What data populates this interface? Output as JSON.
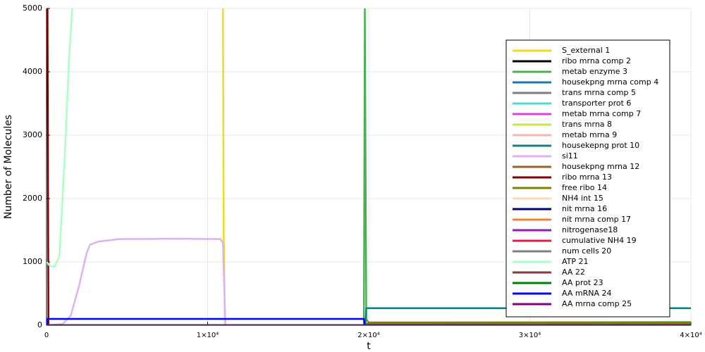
{
  "chart_data": {
    "type": "line",
    "xlabel": "t",
    "ylabel": "Number of Molecules",
    "xlim": [
      0,
      40000
    ],
    "ylim": [
      0,
      5000
    ],
    "xticks": [
      0,
      {
        "value": 10000,
        "label": "1×10⁴"
      },
      {
        "value": 20000,
        "label": "2×10⁴"
      },
      {
        "value": 30000,
        "label": "3×10⁴"
      },
      {
        "value": 40000,
        "label": "4×10⁴"
      }
    ],
    "yticks": [
      0,
      1000,
      2000,
      3000,
      4000,
      5000
    ],
    "grid": true,
    "legend": "top-right",
    "series": [
      {
        "name": "S_external 1",
        "color": "#f5d81f",
        "x": [
          10950,
          11000,
          11080,
          40000
        ],
        "values": [
          5000,
          1400,
          0,
          0
        ]
      },
      {
        "name": "ribo mrna comp 2",
        "color": "#000000",
        "x": [
          0,
          40000
        ],
        "values": [
          0,
          0
        ]
      },
      {
        "name": "metab enzyme 3",
        "color": "#4cb050",
        "x": [
          0,
          19700,
          19760,
          19850,
          20000,
          40000
        ],
        "values": [
          0,
          0,
          5000,
          100,
          40,
          50
        ]
      },
      {
        "name": "housekpng mrna comp 4",
        "color": "#1f78b4",
        "x": [
          0,
          40000
        ],
        "values": [
          0,
          0
        ]
      },
      {
        "name": "trans mrna comp 5",
        "color": "#808080",
        "x": [
          0,
          40000
        ],
        "values": [
          0,
          0
        ]
      },
      {
        "name": "transporter prot 6",
        "color": "#4dd9e0",
        "x": [
          0,
          40000
        ],
        "values": [
          0,
          0
        ]
      },
      {
        "name": "metab mrna comp 7",
        "color": "#e040e0",
        "x": [
          0,
          40000
        ],
        "values": [
          0,
          0
        ]
      },
      {
        "name": "trans mrna 8",
        "color": "#c6e84a",
        "x": [
          0,
          19800,
          20000,
          40000
        ],
        "values": [
          0,
          0,
          30,
          30
        ]
      },
      {
        "name": "metab mrna 9",
        "color": "#f4b6b6",
        "x": [
          0,
          40000
        ],
        "values": [
          0,
          0
        ]
      },
      {
        "name": "housekepng prot 10",
        "color": "#138080",
        "x": [
          0,
          19800,
          19850,
          40000
        ],
        "values": [
          0,
          0,
          270,
          270
        ]
      },
      {
        "name": "si11",
        "color": "#dcb3f0",
        "x": [
          0,
          1000,
          1500,
          2000,
          2500,
          2700,
          3200,
          4500,
          8000,
          10800,
          10950,
          11100,
          40000
        ],
        "values": [
          0,
          20,
          150,
          600,
          1150,
          1270,
          1320,
          1360,
          1365,
          1360,
          1300,
          0,
          0
        ]
      },
      {
        "name": "housekpng mrna 12",
        "color": "#9a6324",
        "x": [
          0,
          19800,
          20000,
          40000
        ],
        "values": [
          0,
          0,
          30,
          30
        ]
      },
      {
        "name": "ribo mrna 13",
        "color": "#800000",
        "x": [
          0,
          60,
          120,
          40000
        ],
        "values": [
          5000,
          5000,
          0,
          0
        ]
      },
      {
        "name": "free ribo 14",
        "color": "#808000",
        "x": [
          0,
          19800,
          20000,
          40000
        ],
        "values": [
          0,
          0,
          45,
          45
        ]
      },
      {
        "name": "NH4 int 15",
        "color": "#ffd8b1",
        "x": [
          0,
          40000
        ],
        "values": [
          0,
          0
        ]
      },
      {
        "name": "nit mrna 16",
        "color": "#000075",
        "x": [
          0,
          40000
        ],
        "values": [
          0,
          0
        ]
      },
      {
        "name": "nit mrna comp 17",
        "color": "#f58231",
        "x": [
          0,
          40000
        ],
        "values": [
          0,
          0
        ]
      },
      {
        "name": "nitrogenase18",
        "color": "#911eb4",
        "x": [
          0,
          40000
        ],
        "values": [
          0,
          0
        ]
      },
      {
        "name": "cumulative NH4 19",
        "color": "#e6194b",
        "x": [
          0,
          40000
        ],
        "values": [
          0,
          0
        ]
      },
      {
        "name": "num cells 20",
        "color": "#808080",
        "x": [
          0,
          40000
        ],
        "values": [
          0,
          0
        ]
      },
      {
        "name": "ATP 21",
        "color": "#aaffc3",
        "x": [
          0,
          200,
          500,
          800,
          1100,
          1400,
          1600
        ],
        "values": [
          1000,
          940,
          920,
          1100,
          2500,
          4200,
          5000
        ]
      },
      {
        "name": "AA 22",
        "color": "#8b3a3a",
        "x": [
          0,
          40000
        ],
        "values": [
          0,
          0
        ]
      },
      {
        "name": "AA prot 23",
        "color": "#008000",
        "x": [
          0,
          40000
        ],
        "values": [
          0,
          0
        ]
      },
      {
        "name": "AA mRNA 24",
        "color": "#0000ff",
        "x": [
          0,
          40,
          19700,
          19760,
          40000
        ],
        "values": [
          0,
          100,
          100,
          0,
          0
        ]
      },
      {
        "name": "AA mrna comp 25",
        "color": "#800080",
        "x": [
          0,
          40000
        ],
        "values": [
          0,
          0
        ]
      }
    ]
  }
}
